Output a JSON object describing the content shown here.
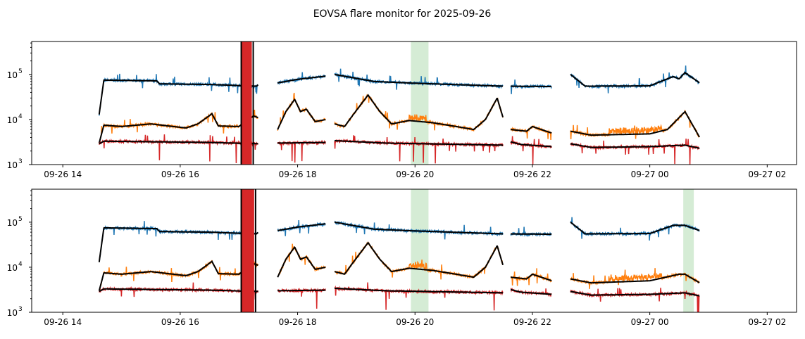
{
  "chart_data": {
    "type": "line",
    "title": "EOVSA flare monitor for 2025-09-26",
    "x_unit": "hours since 2025-09-26 00:00",
    "xlim": [
      13.47,
      26.5
    ],
    "ylim": [
      1000,
      540000
    ],
    "yscale": "log",
    "xticks": [
      {
        "t": 14,
        "label": "09-26 14"
      },
      {
        "t": 16,
        "label": "09-26 16"
      },
      {
        "t": 18,
        "label": "09-26 18"
      },
      {
        "t": 20,
        "label": "09-26 20"
      },
      {
        "t": 22,
        "label": "09-26 22"
      },
      {
        "t": 24,
        "label": "09-27 00"
      },
      {
        "t": 26,
        "label": "09-27 02"
      }
    ],
    "yticks": [
      {
        "v": 1000,
        "label": "10",
        "exp": "3"
      },
      {
        "v": 10000,
        "label": "10",
        "exp": "4"
      },
      {
        "v": 100000,
        "label": "10",
        "exp": "5"
      }
    ],
    "colors": {
      "blue": "#1f77b4",
      "orange": "#ff7f0e",
      "red": "#d62728",
      "smooth": "#000000",
      "flare_span": "#2ca02c"
    },
    "panels": [
      {
        "name": "top",
        "flare_spans": [
          [
            19.93,
            20.23
          ]
        ],
        "red_burst": [
          17.04,
          17.22
        ],
        "series": [
          {
            "name": "blue",
            "segments": [
              [
                [
                  14.62,
                  13000
                ],
                [
                  14.7,
                  75000
                ],
                [
                  15.6,
                  72000
                ],
                [
                  15.65,
                  62000
                ],
                [
                  16.5,
                  60000
                ],
                [
                  17.3,
                  55000
                ],
                [
                  17.33,
                  60000
                ]
              ],
              [
                [
                  17.66,
                  65000
                ],
                [
                  18.0,
                  78000
                ],
                [
                  18.48,
                  92000
                ]
              ],
              [
                [
                  18.63,
                  100000
                ],
                [
                  19.3,
                  70000
                ],
                [
                  20.0,
                  64000
                ],
                [
                  21.5,
                  55000
                ]
              ],
              [
                [
                  21.63,
                  55000
                ],
                [
                  22.33,
                  54000
                ]
              ],
              [
                [
                  22.65,
                  100000
                ],
                [
                  22.9,
                  55000
                ],
                [
                  24.0,
                  56000
                ],
                [
                  24.4,
                  90000
                ],
                [
                  24.5,
                  80000
                ],
                [
                  24.6,
                  110000
                ],
                [
                  24.85,
                  65000
                ]
              ]
            ]
          },
          {
            "name": "orange",
            "segments": [
              [
                [
                  14.62,
                  3000
                ],
                [
                  14.7,
                  7500
                ],
                [
                  15.0,
                  7000
                ],
                [
                  15.5,
                  8000
                ],
                [
                  15.8,
                  7200
                ],
                [
                  16.1,
                  6500
                ],
                [
                  16.3,
                  8000
                ],
                [
                  16.45,
                  11000
                ],
                [
                  16.54,
                  13500
                ],
                [
                  16.65,
                  7200
                ],
                [
                  17.0,
                  7000
                ],
                [
                  17.25,
                  12000
                ],
                [
                  17.33,
                  11000
                ]
              ],
              [
                [
                  17.66,
                  6000
                ],
                [
                  17.8,
                  15000
                ],
                [
                  17.95,
                  28000
                ],
                [
                  18.05,
                  15000
                ],
                [
                  18.15,
                  17000
                ],
                [
                  18.3,
                  9000
                ],
                [
                  18.48,
                  10000
                ]
              ],
              [
                [
                  18.63,
                  8000
                ],
                [
                  18.8,
                  7000
                ],
                [
                  18.95,
                  13000
                ],
                [
                  19.2,
                  35000
                ],
                [
                  19.4,
                  15000
                ],
                [
                  19.6,
                  8000
                ],
                [
                  19.9,
                  9500
                ],
                [
                  20.3,
                  8500
                ],
                [
                  20.7,
                  7000
                ],
                [
                  21.0,
                  6000
                ],
                [
                  21.2,
                  10000
                ],
                [
                  21.4,
                  30000
                ],
                [
                  21.5,
                  11000
                ]
              ],
              [
                [
                  21.63,
                  6000
                ],
                [
                  21.9,
                  5500
                ],
                [
                  22.0,
                  7000
                ],
                [
                  22.33,
                  5000
                ]
              ],
              [
                [
                  22.65,
                  5500
                ],
                [
                  23.0,
                  4500
                ],
                [
                  24.0,
                  4800
                ],
                [
                  24.3,
                  6000
                ],
                [
                  24.6,
                  15000
                ],
                [
                  24.85,
                  4000
                ]
              ]
            ]
          },
          {
            "name": "red",
            "segments": [
              [
                [
                  14.62,
                  2900
                ],
                [
                  14.7,
                  3300
                ],
                [
                  16.5,
                  3100
                ],
                [
                  17.33,
                  2900
                ]
              ],
              [
                [
                  17.66,
                  3000
                ],
                [
                  18.48,
                  3100
                ]
              ],
              [
                [
                  18.63,
                  3400
                ],
                [
                  19.5,
                  3000
                ],
                [
                  21.5,
                  2700
                ]
              ],
              [
                [
                  21.63,
                  3200
                ],
                [
                  21.8,
                  2800
                ],
                [
                  22.33,
                  2500
                ]
              ],
              [
                [
                  22.65,
                  2900
                ],
                [
                  23.0,
                  2400
                ],
                [
                  24.0,
                  2500
                ],
                [
                  24.6,
                  2700
                ],
                [
                  24.85,
                  2300
                ]
              ]
            ]
          }
        ]
      },
      {
        "name": "bottom",
        "flare_spans": [
          [
            19.93,
            20.23
          ],
          [
            24.57,
            24.75
          ]
        ],
        "red_burst": [
          17.04,
          17.26
        ],
        "series": [
          {
            "name": "blue",
            "segments": [
              [
                [
                  14.62,
                  13000
                ],
                [
                  14.7,
                  75000
                ],
                [
                  15.6,
                  72000
                ],
                [
                  15.65,
                  62000
                ],
                [
                  16.5,
                  60000
                ],
                [
                  17.3,
                  55000
                ],
                [
                  17.33,
                  60000
                ]
              ],
              [
                [
                  17.66,
                  65000
                ],
                [
                  18.0,
                  78000
                ],
                [
                  18.48,
                  92000
                ]
              ],
              [
                [
                  18.63,
                  100000
                ],
                [
                  19.3,
                  70000
                ],
                [
                  20.0,
                  64000
                ],
                [
                  21.5,
                  55000
                ]
              ],
              [
                [
                  21.63,
                  55000
                ],
                [
                  22.33,
                  54000
                ]
              ],
              [
                [
                  22.65,
                  100000
                ],
                [
                  22.9,
                  55000
                ],
                [
                  24.0,
                  56000
                ],
                [
                  24.4,
                  85000
                ],
                [
                  24.6,
                  85000
                ],
                [
                  24.85,
                  65000
                ]
              ]
            ]
          },
          {
            "name": "orange",
            "segments": [
              [
                [
                  14.62,
                  3000
                ],
                [
                  14.7,
                  7500
                ],
                [
                  15.0,
                  7000
                ],
                [
                  15.5,
                  8000
                ],
                [
                  15.8,
                  7200
                ],
                [
                  16.1,
                  6500
                ],
                [
                  16.3,
                  8000
                ],
                [
                  16.45,
                  11000
                ],
                [
                  16.54,
                  13500
                ],
                [
                  16.65,
                  7200
                ],
                [
                  17.0,
                  7000
                ],
                [
                  17.25,
                  12000
                ],
                [
                  17.33,
                  11000
                ]
              ],
              [
                [
                  17.66,
                  6000
                ],
                [
                  17.8,
                  15000
                ],
                [
                  17.95,
                  28000
                ],
                [
                  18.05,
                  15000
                ],
                [
                  18.15,
                  17000
                ],
                [
                  18.3,
                  9000
                ],
                [
                  18.48,
                  10000
                ]
              ],
              [
                [
                  18.63,
                  8000
                ],
                [
                  18.8,
                  7000
                ],
                [
                  18.95,
                  13000
                ],
                [
                  19.2,
                  35000
                ],
                [
                  19.4,
                  15000
                ],
                [
                  19.6,
                  8000
                ],
                [
                  19.9,
                  9500
                ],
                [
                  20.3,
                  8500
                ],
                [
                  20.7,
                  7000
                ],
                [
                  21.0,
                  6000
                ],
                [
                  21.2,
                  10000
                ],
                [
                  21.4,
                  30000
                ],
                [
                  21.5,
                  11000
                ]
              ],
              [
                [
                  21.63,
                  6000
                ],
                [
                  21.9,
                  5500
                ],
                [
                  22.0,
                  7000
                ],
                [
                  22.33,
                  5000
                ]
              ],
              [
                [
                  22.65,
                  5500
                ],
                [
                  23.0,
                  4500
                ],
                [
                  24.0,
                  5000
                ],
                [
                  24.5,
                  7000
                ],
                [
                  24.6,
                  7000
                ],
                [
                  24.85,
                  4500
                ]
              ]
            ]
          },
          {
            "name": "red",
            "segments": [
              [
                [
                  14.62,
                  2900
                ],
                [
                  14.7,
                  3300
                ],
                [
                  16.5,
                  3100
                ],
                [
                  17.33,
                  2900
                ]
              ],
              [
                [
                  17.66,
                  3000
                ],
                [
                  18.48,
                  3100
                ]
              ],
              [
                [
                  18.63,
                  3400
                ],
                [
                  19.5,
                  3000
                ],
                [
                  21.5,
                  2700
                ]
              ],
              [
                [
                  21.63,
                  3200
                ],
                [
                  21.8,
                  2800
                ],
                [
                  22.33,
                  2500
                ]
              ],
              [
                [
                  22.65,
                  2900
                ],
                [
                  23.0,
                  2400
                ],
                [
                  24.0,
                  2500
                ],
                [
                  24.6,
                  2700
                ],
                [
                  24.85,
                  2300
                ]
              ]
            ]
          }
        ]
      }
    ]
  }
}
